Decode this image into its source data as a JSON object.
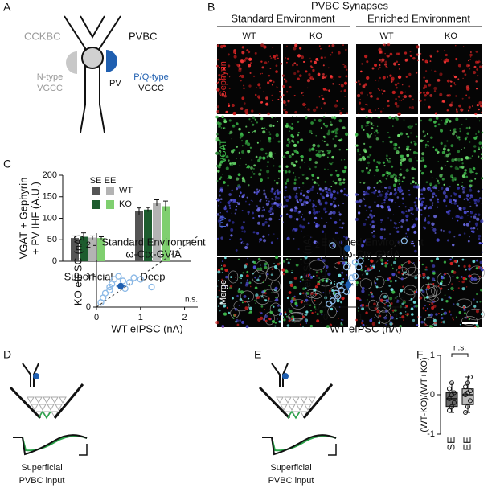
{
  "figure": {
    "panel_labels": [
      "A",
      "B",
      "C",
      "D",
      "E",
      "F"
    ],
    "panel_a": {
      "cckbc": "CCKBC",
      "pvbc": "PVBC",
      "n_type": [
        "N-type",
        "VGCC"
      ],
      "pv": "PV",
      "pq_type": [
        "P/Q-type",
        "VGCC"
      ]
    },
    "panel_b": {
      "title": "PVBC Synapses",
      "conditions": [
        "Standard Environment",
        "Enriched Environment"
      ],
      "genotypes": [
        "WT",
        "KO",
        "WT",
        "KO"
      ],
      "channels": [
        "Gephyrin",
        "VGAT",
        "PV",
        "Merge"
      ]
    },
    "panel_d_input": [
      "Superficial",
      "PVBC input"
    ],
    "panel_e_input": [
      "Superficial",
      "PVBC input"
    ]
  },
  "chart_data": [
    {
      "type": "bar",
      "ylabel": [
        "VGAT + Gephyrin",
        "+ PV IHF (A.U.)"
      ],
      "categories": [
        "Superficial",
        "Deep"
      ],
      "ylim": [
        0,
        200
      ],
      "yticks": [
        0,
        50,
        100,
        150,
        200
      ],
      "legend": {
        "columns": [
          "SE",
          "EE"
        ],
        "rows": [
          "WT",
          "KO"
        ]
      },
      "series": [
        {
          "color": "#555555",
          "values": [
            54,
            116
          ],
          "errors": [
            5,
            8
          ]
        },
        {
          "color": "#1d5c2e",
          "values": [
            57,
            120
          ],
          "errors": [
            9,
            5
          ]
        },
        {
          "color": "#b3b3b3",
          "values": [
            55,
            136
          ],
          "errors": [
            4,
            7
          ]
        },
        {
          "color": "#7fcf6f",
          "values": [
            54,
            128
          ],
          "errors": [
            3,
            12
          ]
        }
      ]
    },
    {
      "type": "scatter",
      "title": "Standard Environment",
      "subtitle": "ω-Ctx-GVIA",
      "xlabel": "WT eIPSC (nA)",
      "ylabel": "KO eIPSC (nA)",
      "xlim": [
        0,
        2.3
      ],
      "xticks": [
        0,
        1,
        2
      ],
      "ylim": [
        0,
        2.4
      ],
      "yticks": [
        0,
        1,
        2
      ],
      "identity_line": true,
      "annotation": "n.s.",
      "color": "#8ab8e6",
      "x": [
        0.1,
        0.15,
        0.2,
        0.3,
        0.35,
        0.4,
        0.5,
        0.6,
        0.65,
        0.75,
        0.85,
        1.0,
        1.25,
        0.3
      ],
      "values": [
        0.15,
        0.3,
        0.45,
        0.55,
        0.75,
        0.9,
        1.0,
        0.85,
        0.6,
        0.8,
        0.95,
        0.9,
        0.65,
        0.65
      ],
      "mean": {
        "x": 0.55,
        "value": 0.68,
        "xerr": 0.1,
        "yerr": 0.08,
        "color": "#1f5fb0"
      }
    },
    {
      "type": "scatter",
      "title": "Enriched Environment",
      "subtitle": "ω-Ctx-GVIA",
      "xlabel": "WT eIPSC (nA)",
      "ylabel": "KO eIPSC (nA)",
      "xlim": [
        0,
        2.3
      ],
      "xticks": [
        0,
        1,
        2
      ],
      "ylim": [
        0,
        2.4
      ],
      "yticks": [
        0,
        1,
        2
      ],
      "identity_line": true,
      "annotation": "n.s.",
      "color": "#8ab8e6",
      "x": [
        0.1,
        0.2,
        0.3,
        0.35,
        0.4,
        0.45,
        0.6,
        0.6,
        0.75,
        0.85,
        0.95,
        1.0,
        0.85,
        0.2,
        2.25
      ],
      "values": [
        0.1,
        0.2,
        0.45,
        0.35,
        0.7,
        0.55,
        0.5,
        1.3,
        0.95,
        1.0,
        1.3,
        1.5,
        1.45,
        2.0,
        2.15
      ],
      "mean": {
        "x": 0.65,
        "value": 0.72,
        "xerr": 0.15,
        "yerr": 0.18,
        "color": "#1f5fb0"
      }
    },
    {
      "type": "box",
      "ylabel": "(WT-KO)/(WT+KO)",
      "categories": [
        "SE",
        "EE"
      ],
      "ylim": [
        -1,
        1
      ],
      "yticks": [
        -1,
        0,
        1
      ],
      "annotation": "n.s.",
      "boxes": [
        {
          "color": "#666666",
          "min": -0.45,
          "q1": -0.3,
          "median": -0.1,
          "q3": 0.05,
          "max": 0.3,
          "points": [
            -0.4,
            -0.3,
            -0.2,
            -0.1,
            0.0,
            0.05,
            0.15,
            0.3
          ]
        },
        {
          "color": "#bbbbbb",
          "min": -0.45,
          "q1": -0.25,
          "median": 0.0,
          "q3": 0.15,
          "max": 0.45,
          "points": [
            -0.45,
            -0.3,
            -0.15,
            0.0,
            0.05,
            0.1,
            0.2,
            0.3,
            0.45
          ]
        }
      ]
    }
  ]
}
